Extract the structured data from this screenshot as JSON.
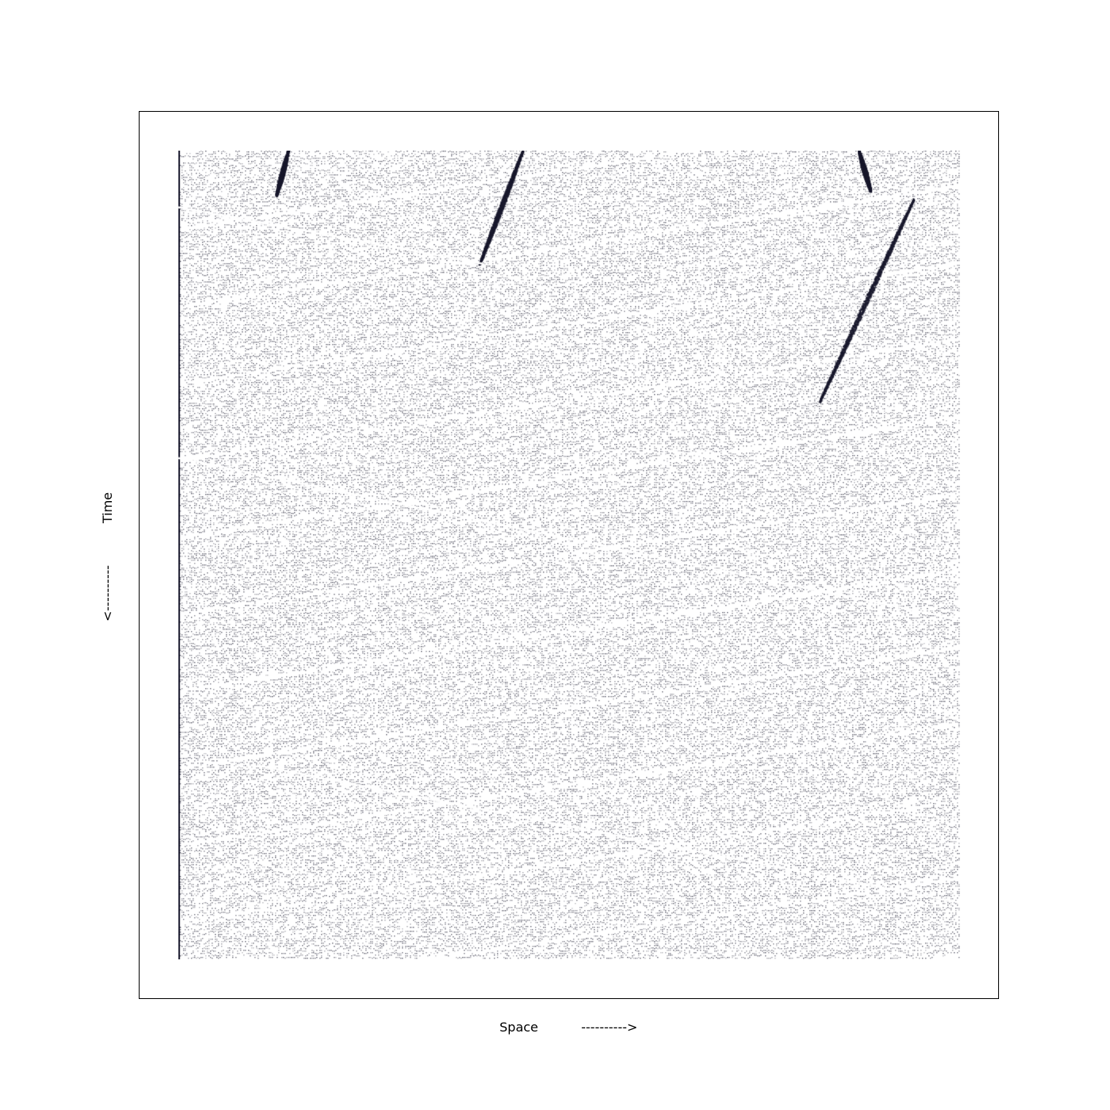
{
  "chart_data": {
    "type": "scatter",
    "title": "",
    "xlabel": "Space",
    "xlabel_arrow": "---------->",
    "ylabel": "Time",
    "ylabel_arrow": "<----------",
    "grid": false,
    "legend": "none",
    "ticks": "hidden",
    "marker_color": "#1a1a2e",
    "background_color": "#ffffff",
    "frame_color": "#000000",
    "description_of_marks": "space-time diagram of particle trajectories drifting to the right with time, with several dark shock/jam bands",
    "jam_bands": [
      {
        "x_start": 0.14,
        "t_start": 0.0,
        "x_end": 0.125,
        "t_end": 0.055
      },
      {
        "x_start": 0.44,
        "t_start": 0.0,
        "x_end": 0.385,
        "t_end": 0.14
      },
      {
        "x_start": 0.94,
        "t_start": 0.06,
        "x_end": 0.82,
        "t_end": 0.31
      },
      {
        "x_start": 0.87,
        "t_start": 0.0,
        "x_end": 0.885,
        "t_end": 0.05
      }
    ]
  }
}
